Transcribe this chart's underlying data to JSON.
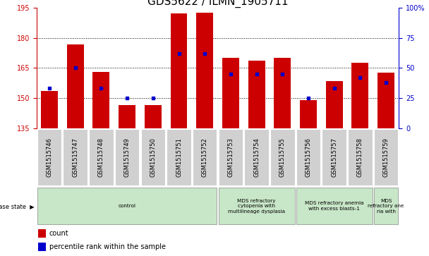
{
  "title": "GDS5622 / ILMN_1905711",
  "samples": [
    "GSM1515746",
    "GSM1515747",
    "GSM1515748",
    "GSM1515749",
    "GSM1515750",
    "GSM1515751",
    "GSM1515752",
    "GSM1515753",
    "GSM1515754",
    "GSM1515755",
    "GSM1515756",
    "GSM1515757",
    "GSM1515758",
    "GSM1515759"
  ],
  "count_values": [
    153.5,
    176.5,
    163.0,
    146.5,
    146.5,
    192.0,
    192.5,
    170.0,
    168.5,
    170.0,
    149.0,
    158.5,
    167.5,
    162.5
  ],
  "percentile_values": [
    33,
    50,
    33,
    25,
    25,
    62,
    62,
    45,
    45,
    45,
    25,
    33,
    42,
    38
  ],
  "y_min": 135,
  "y_max": 195,
  "y_ticks": [
    135,
    150,
    165,
    180,
    195
  ],
  "y2_ticks": [
    0,
    25,
    50,
    75,
    100
  ],
  "bar_color": "#cc0000",
  "percentile_color": "#0000cc",
  "disease_groups": [
    {
      "label": "control",
      "start": 0,
      "end": 7
    },
    {
      "label": "MDS refractory\ncytopenia with\nmultilineage dysplasia",
      "start": 7,
      "end": 10
    },
    {
      "label": "MDS refractory anemia\nwith excess blasts-1",
      "start": 10,
      "end": 13
    },
    {
      "label": "MDS\nrefractory ane\nria with",
      "start": 13,
      "end": 14
    }
  ],
  "disease_state_label": "disease state",
  "legend_count_label": "count",
  "legend_percentile_label": "percentile rank within the sample",
  "bg_color_sample": "#d0d0d0",
  "bg_color_disease": "#c8e6c8",
  "bar_color_str": "#cc0000",
  "percentile_color_str": "#0000cc",
  "title_fontsize": 11,
  "tick_fontsize": 7,
  "label_fontsize": 7,
  "grid_ticks": [
    150,
    165,
    180
  ]
}
